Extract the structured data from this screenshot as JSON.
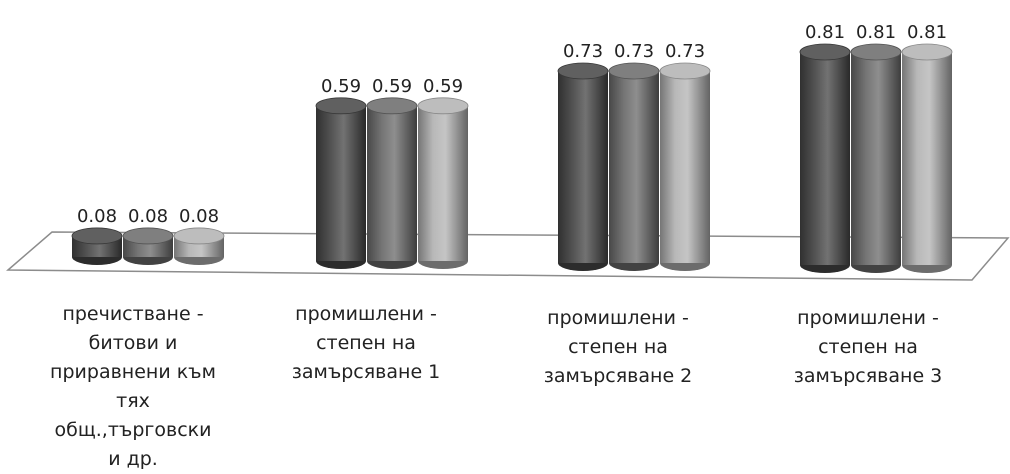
{
  "chart_data": {
    "type": "bar",
    "style": "3d-cylinder",
    "categories": [
      "пречистване -\nбитови и\nприравнени към\nтях общ.,търговски\nи др.",
      "промишлени -\nстепен на\nзамърсяване 1",
      "промишлени -\nстепен на\nзамърсяване 2",
      "промишлени -\nстепен на\nзамърсяване 3"
    ],
    "series": [
      {
        "values": [
          0.08,
          0.59,
          0.73,
          0.81
        ],
        "value_labels": [
          "0.08",
          "0.59",
          "0.73",
          "0.81"
        ],
        "color": "#4a4a4a"
      },
      {
        "values": [
          0.08,
          0.59,
          0.73,
          0.81
        ],
        "value_labels": [
          "0.08",
          "0.59",
          "0.73",
          "0.81"
        ],
        "color": "#6e6e6e"
      },
      {
        "values": [
          0.08,
          0.59,
          0.73,
          0.81
        ],
        "value_labels": [
          "0.08",
          "0.59",
          "0.73",
          "0.81"
        ],
        "color": "#b4b4b4"
      }
    ],
    "title": "",
    "xlabel": "",
    "ylabel": "",
    "ylim": [
      0,
      0.9
    ],
    "grid": false,
    "legend": "none",
    "colors": {
      "floor_line": "#8c8c8c",
      "label_text": "#222222"
    }
  }
}
